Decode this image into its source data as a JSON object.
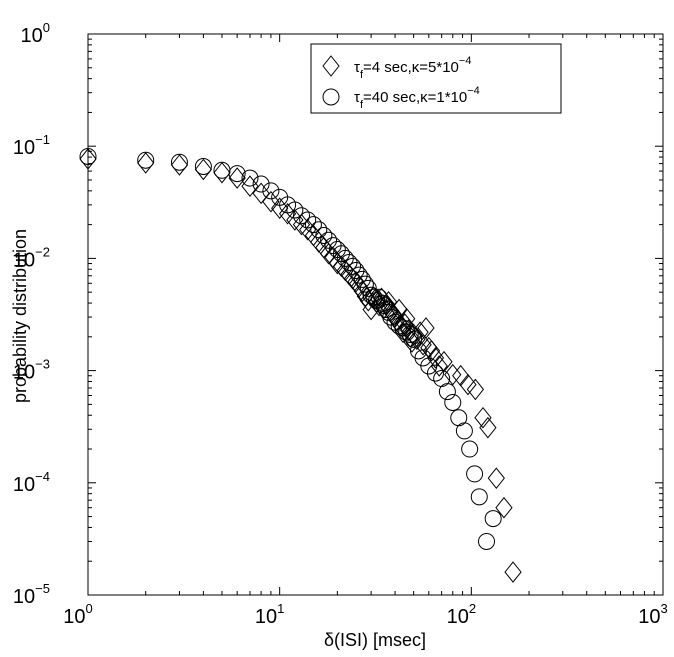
{
  "chart_data": {
    "type": "scatter",
    "xscale": "log",
    "yscale": "log",
    "xlim": [
      1,
      1000
    ],
    "ylim": [
      1e-05,
      1
    ],
    "xlabel": "δ(ISI) [msec]",
    "ylabel": "probability distribution",
    "grid": false,
    "legend_position": "top-right",
    "x_ticks": [
      {
        "base": "10",
        "exp": "0",
        "value": 1
      },
      {
        "base": "10",
        "exp": "1",
        "value": 10
      },
      {
        "base": "10",
        "exp": "2",
        "value": 100
      },
      {
        "base": "10",
        "exp": "3",
        "value": 1000
      }
    ],
    "y_ticks": [
      {
        "base": "10",
        "exp": "0",
        "value": 1
      },
      {
        "base": "10",
        "exp": "−1",
        "value": 0.1
      },
      {
        "base": "10",
        "exp": "−2",
        "value": 0.01
      },
      {
        "base": "10",
        "exp": "−3",
        "value": 0.001
      },
      {
        "base": "10",
        "exp": "−4",
        "value": 0.0001
      },
      {
        "base": "10",
        "exp": "−5",
        "value": 1e-05
      }
    ],
    "series": [
      {
        "marker": "diamond",
        "legend": {
          "tau_symbol": "τ",
          "tau_sub": "f",
          "value_text": "=4 sec,κ=5*10",
          "exp": "−4"
        },
        "x": [
          1,
          2,
          3,
          4,
          5,
          6,
          7,
          8,
          9,
          10,
          11,
          12,
          13,
          14,
          15,
          16,
          17,
          18,
          19,
          20,
          21,
          22,
          23,
          24,
          25,
          26,
          27,
          28,
          29,
          30,
          31,
          32,
          33,
          34,
          35,
          36,
          37,
          38,
          39,
          40,
          41,
          42,
          43,
          44,
          45,
          46,
          47,
          48,
          49,
          50,
          52,
          54,
          56,
          58,
          60,
          62,
          65,
          68,
          72,
          80,
          88,
          96,
          105,
          115,
          122,
          135,
          148,
          165
        ],
        "y": [
          0.077,
          0.071,
          0.068,
          0.062,
          0.058,
          0.052,
          0.044,
          0.038,
          0.032,
          0.028,
          0.025,
          0.022,
          0.02,
          0.018,
          0.016,
          0.014,
          0.0125,
          0.011,
          0.0102,
          0.009,
          0.0085,
          0.0078,
          0.0072,
          0.0066,
          0.0062,
          0.0056,
          0.0051,
          0.0046,
          0.0042,
          0.0035,
          0.0045,
          0.0041,
          0.0038,
          0.0044,
          0.0036,
          0.0039,
          0.0041,
          0.0034,
          0.0032,
          0.003,
          0.0028,
          0.0035,
          0.0025,
          0.0022,
          0.0026,
          0.0029,
          0.0023,
          0.002,
          0.0018,
          0.0021,
          0.0019,
          0.0022,
          0.0017,
          0.0024,
          0.0016,
          0.0015,
          0.0013,
          0.0011,
          0.0012,
          0.00092,
          0.0009,
          0.00075,
          0.00068,
          0.00038,
          0.00031,
          0.00011,
          6e-05,
          1.6e-05
        ]
      },
      {
        "marker": "circle",
        "legend": {
          "tau_symbol": "τ",
          "tau_sub": "f",
          "value_text": "=40 sec,κ=1*10",
          "exp": "−4"
        },
        "x": [
          1,
          2,
          3,
          4,
          5,
          6,
          7,
          8,
          9,
          10,
          11,
          12,
          13,
          14,
          15,
          16,
          17,
          18,
          19,
          20,
          21,
          22,
          23,
          24,
          25,
          26,
          27,
          28,
          29,
          30,
          31,
          32,
          33,
          34,
          35,
          36,
          37,
          38,
          40,
          42,
          44,
          46,
          48,
          50,
          53,
          56,
          60,
          65,
          70,
          75,
          80,
          86,
          92,
          98,
          104,
          110,
          120,
          130
        ],
        "y": [
          0.081,
          0.075,
          0.072,
          0.066,
          0.061,
          0.057,
          0.052,
          0.046,
          0.04,
          0.035,
          0.03,
          0.027,
          0.024,
          0.022,
          0.02,
          0.018,
          0.016,
          0.0145,
          0.013,
          0.012,
          0.011,
          0.01,
          0.0092,
          0.0085,
          0.0078,
          0.0071,
          0.0065,
          0.0059,
          0.0054,
          0.0047,
          0.0045,
          0.0042,
          0.0045,
          0.004,
          0.0038,
          0.0035,
          0.0033,
          0.003,
          0.0027,
          0.0025,
          0.0024,
          0.0022,
          0.0021,
          0.0019,
          0.0015,
          0.0013,
          0.0011,
          0.00095,
          0.00085,
          0.00065,
          0.00052,
          0.00038,
          0.00029,
          0.0002,
          0.00012,
          7.5e-05,
          3e-05,
          4.8e-05
        ]
      }
    ]
  }
}
